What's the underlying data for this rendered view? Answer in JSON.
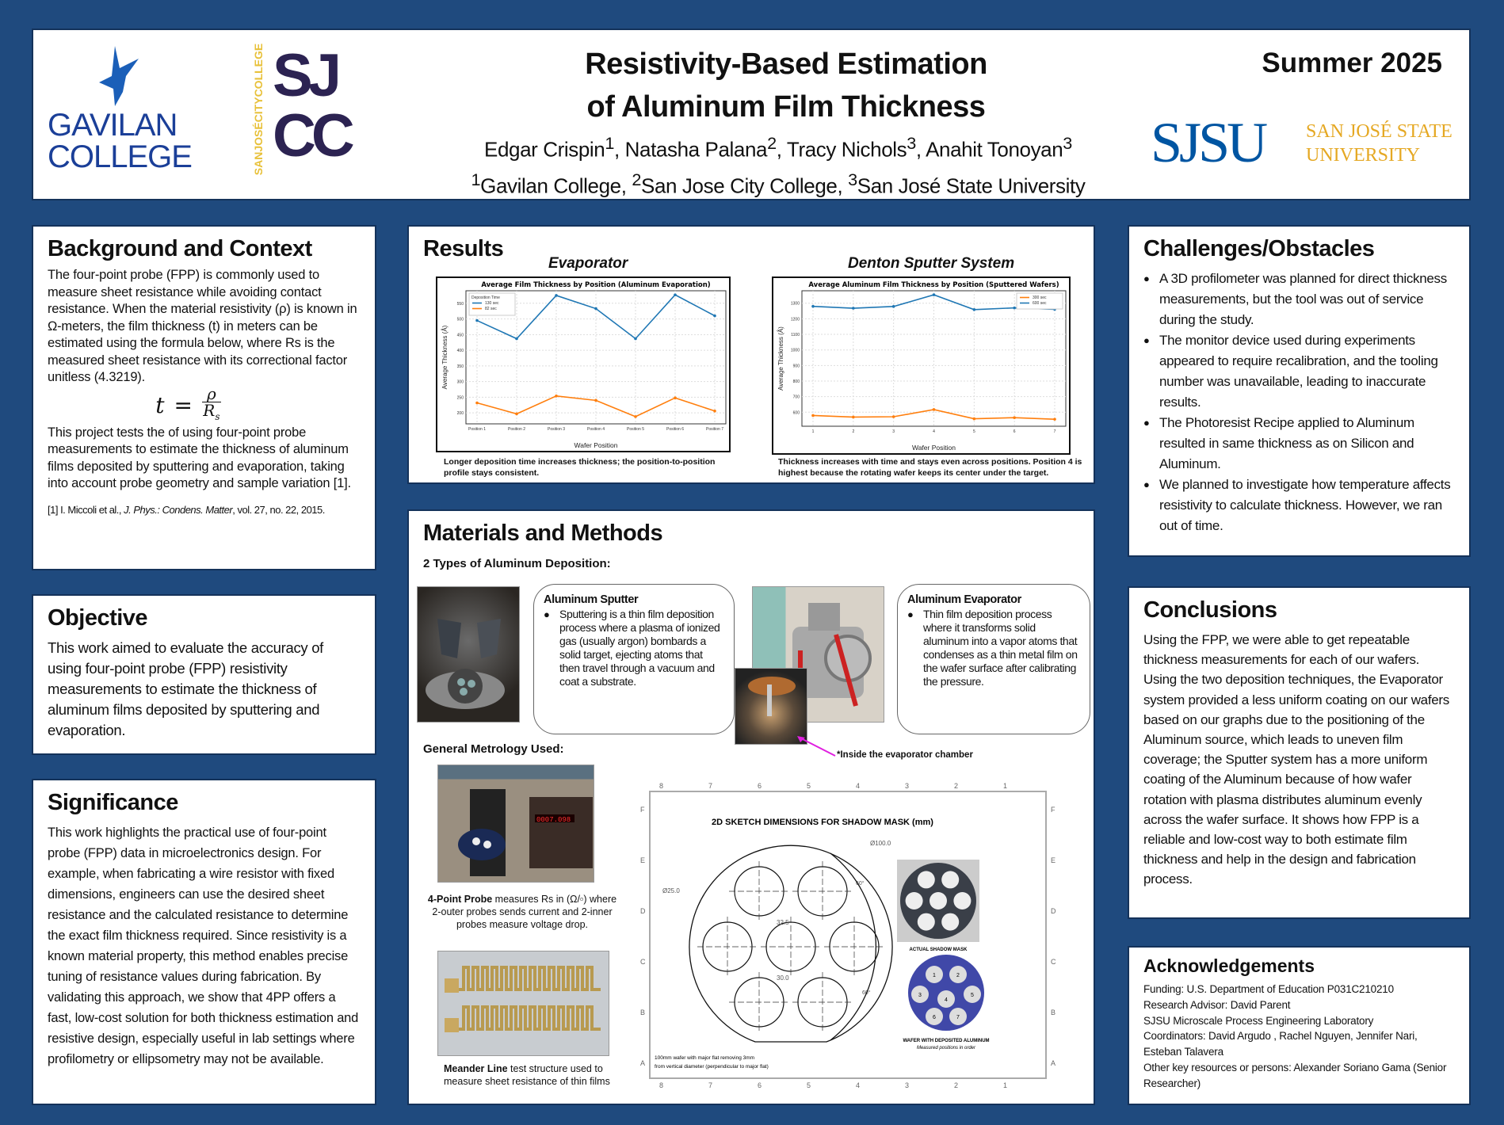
{
  "header": {
    "title_line1": "Resistivity-Based Estimation",
    "title_line2": "of Aluminum Film Thickness",
    "authors": [
      {
        "name": "Edgar Crispin",
        "sup": "1"
      },
      {
        "name": "Natasha Palana",
        "sup": "2"
      },
      {
        "name": "Tracy Nichols",
        "sup": "3"
      },
      {
        "name": "Anahit Tonoyan",
        "sup": "3"
      }
    ],
    "affiliations": [
      {
        "sup": "1",
        "name": "Gavilan College"
      },
      {
        "sup": "2",
        "name": "San Jose City College"
      },
      {
        "sup": "3",
        "name": "San José State University"
      }
    ],
    "season": "Summer 2025",
    "logos": {
      "gavilan_line1": "GAVILAN",
      "gavilan_line2": "COLLEGE",
      "sjcc_vertical": "SANJOSÉCITYCOLLEGE",
      "sjcc_top": "SJ",
      "sjcc_bottom": "CC",
      "sjsu": "SJSU",
      "sjsu_name_line1": "SAN JOSÉ STATE",
      "sjsu_name_line2": "UNIVERSITY"
    },
    "colors": {
      "gavilan_blue": "#1b3f98",
      "sjcc_purple": "#2c2352",
      "sjcc_gold": "#e8c13a",
      "sjsu_blue": "#0055a2",
      "sjsu_gold": "#e5a823",
      "background": "#1f4a7e"
    }
  },
  "background": {
    "heading": "Background and Context",
    "p1": "The four-point probe (FPP) is commonly used to measure sheet resistance while avoiding contact resistance. When the material resistivity (ρ) is known in Ω-meters, the film thickness (t) in meters can be estimated using the formula below, where Rs is the measured sheet resistance with its correctional factor unitless (4.3219).",
    "formula_lhs": "t",
    "formula_eq": "=",
    "formula_num": "ρ",
    "formula_den": "R",
    "formula_sub": "s",
    "p2": "This project tests the of using four-point probe measurements to estimate the thickness of aluminum films deposited by sputtering and evaporation, taking into account probe geometry and sample variation [1].",
    "ref_pre": "[1] I. Miccoli et al., ",
    "ref_journal": "J. Phys.: Condens. Matter",
    "ref_post": ", vol. 27, no. 22, 2015."
  },
  "objective": {
    "heading": "Objective",
    "text": "This work aimed to evaluate the accuracy of using four-point probe (FPP) resistivity measurements to estimate the thickness of aluminum films deposited by sputtering and evaporation."
  },
  "significance": {
    "heading": "Significance",
    "text": "This work highlights the practical use of four-point probe (FPP) data in microelectronics design. For example, when fabricating a wire resistor with fixed dimensions, engineers can use the desired sheet resistance and the calculated resistance to determine the exact film thickness required. Since resistivity is a known material property, this method enables precise tuning of resistance values during fabrication. By validating this approach, we show that 4PP offers a fast, low-cost solution for both thickness estimation and resistive design, especially useful in lab settings where profilometry or ellipsometry may not be available."
  },
  "results": {
    "heading": "Results",
    "evap_label": "Evaporator",
    "sputter_label": "Denton Sputter System",
    "evap_caption": "Longer deposition time increases thickness; the position-to-position profile stays consistent.",
    "sputter_caption": "Thickness increases with time and stays even across positions. Position 4 is highest because the rotating wafer keeps its center under the target."
  },
  "chart_data": [
    {
      "type": "line",
      "title": "Average Film Thickness by Position (Aluminum Evaporation)",
      "xlabel": "Wafer Position",
      "ylabel": "Average Thickness (Å)",
      "categories": [
        "Position 1",
        "Position 2",
        "Position 3",
        "Position 4",
        "Position 5",
        "Position 6",
        "Position 7"
      ],
      "ylim": [
        165,
        590
      ],
      "yticks": [
        200,
        250,
        300,
        350,
        400,
        450,
        500,
        550
      ],
      "grid": true,
      "legend_title": "Deposition Time",
      "legend_position": "top-left",
      "series": [
        {
          "name": "130 sec",
          "color": "#1f77b4",
          "values": [
            495,
            437,
            575,
            533,
            437,
            577,
            510
          ]
        },
        {
          "name": "82 sec",
          "color": "#ff7f0e",
          "values": [
            232,
            197,
            254,
            240,
            188,
            248,
            206
          ]
        }
      ]
    },
    {
      "type": "line",
      "title": "Average Aluminum Film Thickness by Position (Sputtered Wafers)",
      "xlabel": "Wafer Position",
      "ylabel": "Average Thickness (Å)",
      "categories": [
        "1",
        "2",
        "3",
        "4",
        "5",
        "6",
        "7"
      ],
      "ylim": [
        510,
        1380
      ],
      "yticks": [
        600,
        700,
        800,
        900,
        1000,
        1100,
        1200,
        1300
      ],
      "grid": true,
      "legend_title": "",
      "legend_position": "top-right",
      "series": [
        {
          "name": "300 sec",
          "color": "#ff7f0e",
          "values": [
            579,
            569,
            571,
            617,
            558,
            565,
            555
          ]
        },
        {
          "name": "600 sec",
          "color": "#1f77b4",
          "values": [
            1280,
            1268,
            1279,
            1354,
            1259,
            1270,
            1261
          ]
        }
      ]
    }
  ],
  "methods": {
    "heading": "Materials and Methods",
    "subheading": "2 Types of Aluminum Deposition:",
    "sputter_title": "Aluminum Sputter",
    "sputter_text": "Sputtering is a thin film deposition process where a plasma of ionized gas (usually argon) bombards a solid target, ejecting atoms that then travel through a vacuum and coat a substrate.",
    "evap_title": "Aluminum Evaporator",
    "evap_text": "Thin film deposition process where it transforms solid aluminum into a vapor atoms that condenses as a thin metal film on the wafer surface after calibrating the pressure.",
    "inside_caption": "*Inside the evaporator chamber",
    "metrology_heading": "General Metrology Used:",
    "fpp_bold": "4-Point Probe",
    "fpp_text": " measures Rs in (Ω/▫) where 2-outer probes sends current and 2-inner probes measure voltage drop.",
    "meander_bold": "Meander Line",
    "meander_text": " test structure used to measure sheet resistance of thin films",
    "probe_display": "0007.098",
    "mask": {
      "title": "2D SKETCH DIMENSIONS FOR SHADOW MASK (mm)",
      "dia_wafer": "Ø100.0",
      "dia_hole": "Ø25.0",
      "dim_a": "32.5",
      "dim_b": "30.0",
      "angle_1": "60°",
      "angle_2": "60°",
      "note_line1": "100mm wafer with major flat removing 3mm",
      "note_line2": "from vertical diameter (perpendicular to major flat)",
      "actual_caption": "ACTUAL SHADOW MASK",
      "wafer_caption_1": "WAFER WITH DEPOSITED ALUMINUM",
      "wafer_caption_2": "Measured positions in order",
      "positions": [
        "1",
        "2",
        "3",
        "4",
        "5",
        "6",
        "7"
      ],
      "col_labels": [
        "8",
        "7",
        "6",
        "5",
        "4",
        "3",
        "2",
        "1"
      ],
      "row_labels": [
        "F",
        "E",
        "D",
        "C",
        "B",
        "A"
      ]
    }
  },
  "challenges": {
    "heading": "Challenges/Obstacles",
    "items": [
      "A 3D profilometer was planned for direct thickness measurements, but the tool was out of service during the study.",
      "The monitor device used during experiments appeared to require recalibration, and the tooling number was unavailable, leading to inaccurate results.",
      "The Photoresist Recipe applied to Aluminum resulted in same thickness as on Silicon and Aluminum.",
      "We planned to investigate how temperature affects resistivity to calculate thickness. However, we ran out of time."
    ]
  },
  "conclusions": {
    "heading": "Conclusions",
    "text": "Using the FPP, we were able to get repeatable thickness measurements for each of our wafers. Using the two deposition techniques, the Evaporator system provided a less uniform coating on our wafers based on our graphs due to the positioning of the Aluminum source, which leads to uneven film coverage; the Sputter system has a more uniform coating of the Aluminum because of how wafer rotation with plasma distributes aluminum evenly across the wafer surface. It shows how FPP is a reliable and low-cost way to both estimate film thickness and help in the design and fabrication process."
  },
  "acknowledgements": {
    "heading": "Acknowledgements",
    "lines": [
      "Funding:  U.S. Department of Education P031C210210",
      "Research Advisor:  David Parent",
      "SJSU Microscale Process Engineering Laboratory",
      "Coordinators: David Argudo , Rachel Nguyen, Jennifer Nari, Esteban Talavera",
      "Other key resources or persons: Alexander Soriano Gama (Senior Researcher)"
    ]
  }
}
